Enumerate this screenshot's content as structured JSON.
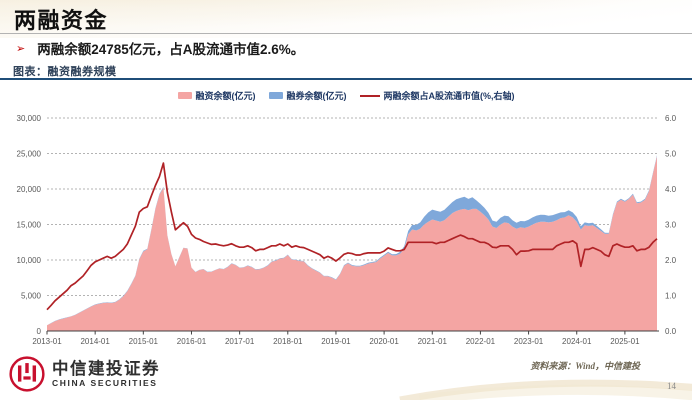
{
  "slide": {
    "title": "两融资金",
    "bullet_marker": "➢",
    "bullet": "两融余额24785亿元，占A股流通市值2.6%。",
    "figure_caption": "图表：融资融券规模",
    "source_note": "资料来源：Wind，中信建投",
    "page_number": "14",
    "logo": {
      "cn": "中信建投证券",
      "en": "CHINA SECURITIES",
      "brand_red": "#c8102e"
    }
  },
  "chart_data": {
    "type": "area",
    "subtype": "stacked-areas-with-line",
    "x_start": "2013-01",
    "x_end": "2025-09",
    "x_tick_labels": [
      "2013-01",
      "2014-01",
      "2015-01",
      "2016-01",
      "2017-01",
      "2018-01",
      "2019-01",
      "2020-01",
      "2021-01",
      "2022-01",
      "2023-01",
      "2024-01",
      "2025-01"
    ],
    "y_left": {
      "min": 0,
      "max": 30000,
      "tick_labels": [
        "0",
        "5,000",
        "10,000",
        "15,000",
        "20,000",
        "25,000",
        "30,000"
      ]
    },
    "y_right": {
      "min": 0,
      "max": 6,
      "tick_labels": [
        "0.0",
        "1.0",
        "2.0",
        "3.0",
        "4.0",
        "5.0",
        "6.0"
      ]
    },
    "grid": "dashed-horizontal",
    "legend_position": "top-center",
    "colors": {
      "grid": "#9a9a9a",
      "axis": "#404040",
      "tick_text": "#595959"
    },
    "series": [
      {
        "name": "融资余额(亿元)",
        "type": "area",
        "axis": "left",
        "color": "#f4a5a3",
        "values": [
          800,
          1100,
          1400,
          1600,
          1750,
          1900,
          2050,
          2250,
          2550,
          2850,
          3150,
          3450,
          3700,
          3850,
          3950,
          4000,
          3950,
          4050,
          4400,
          4900,
          5600,
          6600,
          7700,
          10100,
          11200,
          11500,
          14200,
          17200,
          19200,
          20200,
          13400,
          10800,
          9100,
          10400,
          11700,
          11600,
          8900,
          8300,
          8600,
          8700,
          8300,
          8350,
          8600,
          8800,
          8700,
          9000,
          9500,
          9300,
          8900,
          8950,
          9200,
          9000,
          8650,
          8700,
          8900,
          9200,
          9750,
          9900,
          10200,
          10250,
          10700,
          10050,
          10000,
          9850,
          9800,
          9200,
          8800,
          8500,
          8200,
          7700,
          7700,
          7500,
          7200,
          8000,
          9200,
          9550,
          9200,
          9100,
          9100,
          9250,
          9500,
          9600,
          9700,
          10200,
          10600,
          11000,
          10650,
          10650,
          10900,
          11600,
          13600,
          14300,
          14150,
          14400,
          15000,
          15400,
          15700,
          15550,
          15400,
          15600,
          16100,
          16600,
          16900,
          17100,
          17200,
          17000,
          17200,
          17200,
          16800,
          16300,
          15700,
          14700,
          14500,
          15000,
          15300,
          15200,
          14700,
          14400,
          14600,
          14500,
          14700,
          15000,
          15250,
          15400,
          15400,
          15300,
          15400,
          15600,
          15900,
          16000,
          16300,
          16000,
          15400,
          14300,
          14900,
          14800,
          14900,
          14500,
          14100,
          13700,
          13700,
          16300,
          18100,
          18500,
          18200,
          18600,
          19200,
          18000,
          18100,
          18500,
          19700,
          22200,
          24600
        ]
      },
      {
        "name": "融券余额(亿元)",
        "type": "area",
        "axis": "left",
        "stacked_on_previous": true,
        "color": "#7fa8da",
        "values": [
          20,
          25,
          28,
          30,
          32,
          33,
          34,
          35,
          36,
          38,
          39,
          40,
          42,
          44,
          46,
          48,
          50,
          50,
          55,
          60,
          65,
          70,
          75,
          80,
          90,
          95,
          100,
          100,
          95,
          90,
          60,
          40,
          30,
          30,
          30,
          30,
          30,
          30,
          30,
          32,
          33,
          34,
          35,
          36,
          37,
          38,
          39,
          40,
          40,
          42,
          44,
          45,
          46,
          47,
          48,
          49,
          50,
          52,
          54,
          55,
          56,
          57,
          58,
          59,
          60,
          60,
          60,
          60,
          60,
          60,
          62,
          65,
          68,
          72,
          80,
          90,
          95,
          95,
          100,
          110,
          115,
          120,
          130,
          140,
          150,
          160,
          160,
          180,
          250,
          350,
          500,
          650,
          800,
          900,
          1100,
          1300,
          1400,
          1400,
          1400,
          1450,
          1500,
          1550,
          1650,
          1650,
          1700,
          1600,
          1650,
          1200,
          1100,
          1050,
          950,
          850,
          900,
          950,
          950,
          950,
          900,
          850,
          900,
          950,
          980,
          1000,
          1000,
          980,
          950,
          930,
          920,
          900,
          800,
          750,
          720,
          700,
          650,
          450,
          400,
          380,
          350,
          300,
          250,
          150,
          120,
          130,
          130,
          120,
          120,
          125,
          130,
          130,
          130,
          130,
          130,
          130,
          140
        ]
      },
      {
        "name": "两融余额占A股流通市值(%,右轴)",
        "type": "line",
        "axis": "right",
        "color": "#b02226",
        "values": [
          0.6,
          0.72,
          0.85,
          0.95,
          1.05,
          1.15,
          1.28,
          1.35,
          1.45,
          1.55,
          1.7,
          1.85,
          1.95,
          2.0,
          2.05,
          2.1,
          2.05,
          2.1,
          2.2,
          2.3,
          2.45,
          2.7,
          2.95,
          3.35,
          3.45,
          3.5,
          3.8,
          4.1,
          4.35,
          4.73,
          3.9,
          3.35,
          2.85,
          2.95,
          3.05,
          2.95,
          2.72,
          2.62,
          2.58,
          2.52,
          2.48,
          2.44,
          2.45,
          2.42,
          2.4,
          2.42,
          2.46,
          2.4,
          2.36,
          2.36,
          2.4,
          2.35,
          2.26,
          2.3,
          2.3,
          2.35,
          2.4,
          2.4,
          2.45,
          2.4,
          2.45,
          2.36,
          2.4,
          2.36,
          2.35,
          2.3,
          2.25,
          2.2,
          2.15,
          2.05,
          2.1,
          2.05,
          1.97,
          2.06,
          2.16,
          2.2,
          2.18,
          2.14,
          2.14,
          2.18,
          2.2,
          2.2,
          2.2,
          2.2,
          2.25,
          2.34,
          2.3,
          2.26,
          2.26,
          2.3,
          2.5,
          2.5,
          2.5,
          2.5,
          2.5,
          2.5,
          2.5,
          2.46,
          2.5,
          2.5,
          2.55,
          2.6,
          2.65,
          2.7,
          2.66,
          2.6,
          2.6,
          2.55,
          2.5,
          2.5,
          2.45,
          2.36,
          2.35,
          2.4,
          2.4,
          2.4,
          2.3,
          2.15,
          2.25,
          2.25,
          2.26,
          2.3,
          2.3,
          2.3,
          2.3,
          2.3,
          2.3,
          2.4,
          2.45,
          2.5,
          2.5,
          2.54,
          2.46,
          1.82,
          2.3,
          2.3,
          2.35,
          2.3,
          2.25,
          2.15,
          2.1,
          2.4,
          2.45,
          2.4,
          2.36,
          2.36,
          2.4,
          2.26,
          2.3,
          2.3,
          2.36,
          2.5,
          2.6
        ]
      }
    ]
  }
}
